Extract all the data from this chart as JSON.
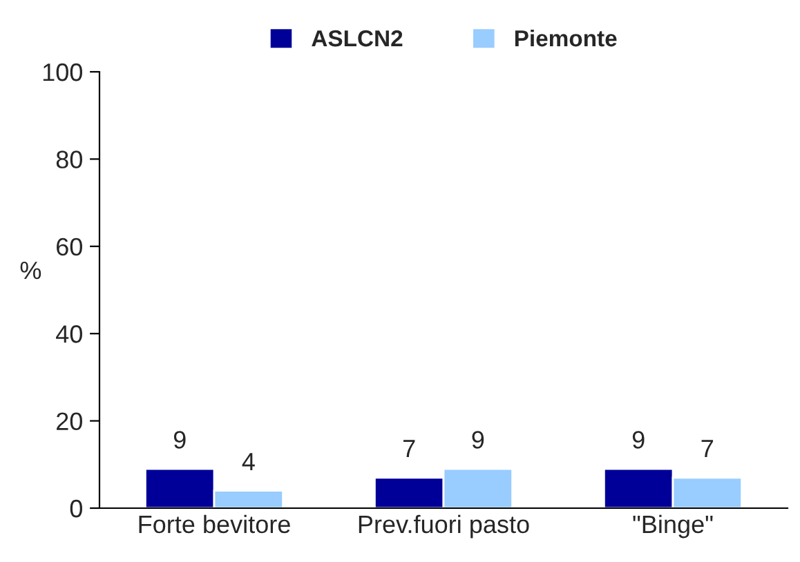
{
  "chart_data": {
    "type": "bar",
    "ylabel": "%",
    "categories": [
      "Forte bevitore",
      "Prev.fuori pasto",
      "\"Binge\""
    ],
    "series": [
      {
        "name": "ASLCN2",
        "color": "#000099",
        "values": [
          9,
          7,
          9
        ]
      },
      {
        "name": "Piemonte",
        "color": "#99ccff",
        "values": [
          4,
          9,
          7
        ]
      }
    ],
    "ylim": [
      0,
      100
    ],
    "yticks": [
      0,
      20,
      40,
      60,
      80,
      100
    ],
    "data_labels": true,
    "legend": "top",
    "grid": false
  }
}
